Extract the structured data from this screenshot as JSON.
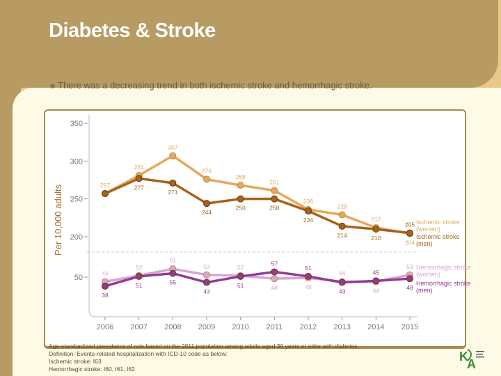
{
  "slide": {
    "title": "Diabetes & Stroke",
    "bullet": "There was a decreasing trend in both ischemic stroke and hemorrhagic stroke.",
    "footnotes": [
      "Age-standardized prevalence of rate based on the 2011 population among adults aged 30 years or older with diabetes",
      "Definition: Events-related hospitalization with ICD-10 code as below:",
      "Ischemic stroke: I63",
      "Hemorrhagic stroke: I60, I61, I62"
    ],
    "logo_text": "KDA"
  },
  "chart_data": {
    "type": "line",
    "ylabel": "Per 10,000 adults",
    "x": [
      2006,
      2007,
      2008,
      2009,
      2010,
      2011,
      2012,
      2013,
      2014,
      2015
    ],
    "y_ticks_upper": [
      350,
      300,
      250,
      200
    ],
    "y_ticks_lower": [
      50
    ],
    "axis_break": "between 50 and 200",
    "grid": false,
    "legend": "right-end labels",
    "series": [
      {
        "name": "Ischemic stroke (women)",
        "color": "#e3a95e",
        "values": [
          257,
          281,
          307,
          276,
          268,
          261,
          236,
          229,
          212,
          204
        ]
      },
      {
        "name": "Ischemic stroke (men)",
        "color": "#a8621a",
        "values": [
          257,
          277,
          271,
          244,
          250,
          250,
          234,
          214,
          210,
          205
        ]
      },
      {
        "name": "Hemorrhagic stroke (women)",
        "color": "#d6a6d6",
        "values": [
          44,
          52,
          61,
          53,
          52,
          48,
          49,
          44,
          44,
          53
        ]
      },
      {
        "name": "Hemorrhagic stroke (men)",
        "color": "#943a94",
        "values": [
          38,
          51,
          55,
          43,
          51,
          57,
          51,
          43,
          45,
          48
        ]
      }
    ]
  }
}
